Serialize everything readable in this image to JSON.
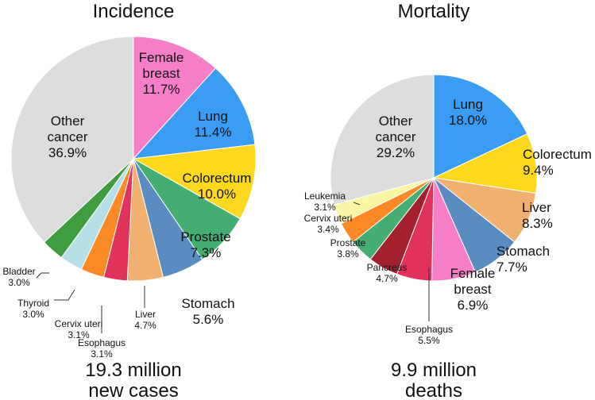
{
  "chart_data": [
    {
      "type": "pie",
      "title": "Incidence",
      "total_line1": "19.3 million",
      "total_line2": "new cases",
      "slices": [
        {
          "label": "Female breast",
          "lines": [
            "Female",
            "breast",
            "11.7%"
          ],
          "value": 11.7,
          "color": "#f77fc8"
        },
        {
          "label": "Lung",
          "lines": [
            "Lung",
            "11.4%"
          ],
          "value": 11.4,
          "color": "#3b9cf4"
        },
        {
          "label": "Colorectum",
          "lines": [
            "Colorectum",
            "10.0%"
          ],
          "value": 10.0,
          "color": "#fcd91f"
        },
        {
          "label": "Prostate",
          "lines": [
            "Prostate",
            "7.3%"
          ],
          "value": 7.3,
          "color": "#46ad72"
        },
        {
          "label": "Stomach",
          "lines": [
            "Stomach",
            "5.6%"
          ],
          "value": 5.6,
          "color": "#5a8cc1"
        },
        {
          "label": "Liver",
          "lines": [
            "Liver",
            "4.7%"
          ],
          "value": 4.7,
          "color": "#f0b070"
        },
        {
          "label": "Esophagus",
          "lines": [
            "Esophagus",
            "3.1%"
          ],
          "value": 3.1,
          "color": "#e0325a"
        },
        {
          "label": "Cervix uteri",
          "lines": [
            "Cervix uteri",
            "3.1%"
          ],
          "value": 3.1,
          "color": "#fb8a26"
        },
        {
          "label": "Thyroid",
          "lines": [
            "Thyroid",
            "3.0%"
          ],
          "value": 3.0,
          "color": "#b6dfe7"
        },
        {
          "label": "Bladder",
          "lines": [
            "Bladder",
            "3.0%"
          ],
          "value": 3.0,
          "color": "#3f9c3f"
        },
        {
          "label": "Other cancer",
          "lines": [
            "Other",
            "cancer",
            "36.9%"
          ],
          "value": 36.9,
          "color": "#dcdcdc"
        }
      ]
    },
    {
      "type": "pie",
      "title": "Mortality",
      "total_line1": "9.9 million",
      "total_line2": "deaths",
      "slices": [
        {
          "label": "Lung",
          "lines": [
            "Lung",
            "18.0%"
          ],
          "value": 18.0,
          "color": "#3b9cf4"
        },
        {
          "label": "Colorectum",
          "lines": [
            "Colorectum",
            "9.4%"
          ],
          "value": 9.4,
          "color": "#fcd91f"
        },
        {
          "label": "Liver",
          "lines": [
            "Liver",
            "8.3%"
          ],
          "value": 8.3,
          "color": "#f0b070"
        },
        {
          "label": "Stomach",
          "lines": [
            "Stomach",
            "7.7%"
          ],
          "value": 7.7,
          "color": "#5a8cc1"
        },
        {
          "label": "Female breast",
          "lines": [
            "Female",
            "breast",
            "6.9%"
          ],
          "value": 6.9,
          "color": "#f77fc8"
        },
        {
          "label": "Esophagus",
          "lines": [
            "Esophagus",
            "5.5%"
          ],
          "value": 5.5,
          "color": "#e0325a"
        },
        {
          "label": "Pancreas",
          "lines": [
            "Pancreas",
            "4.7%"
          ],
          "value": 4.7,
          "color": "#a3202e"
        },
        {
          "label": "Prostate",
          "lines": [
            "Prostate",
            "3.8%"
          ],
          "value": 3.8,
          "color": "#46ad72"
        },
        {
          "label": "Cervix uteri",
          "lines": [
            "Cervix uteri",
            "3.4%"
          ],
          "value": 3.4,
          "color": "#fb8a26"
        },
        {
          "label": "Leukemia",
          "lines": [
            "Leukemia",
            "3.1%"
          ],
          "value": 3.1,
          "color": "#fbf6a6"
        },
        {
          "label": "Other cancer",
          "lines": [
            "Other",
            "cancer",
            "29.2%"
          ],
          "value": 29.2,
          "color": "#dcdcdc"
        }
      ]
    }
  ]
}
